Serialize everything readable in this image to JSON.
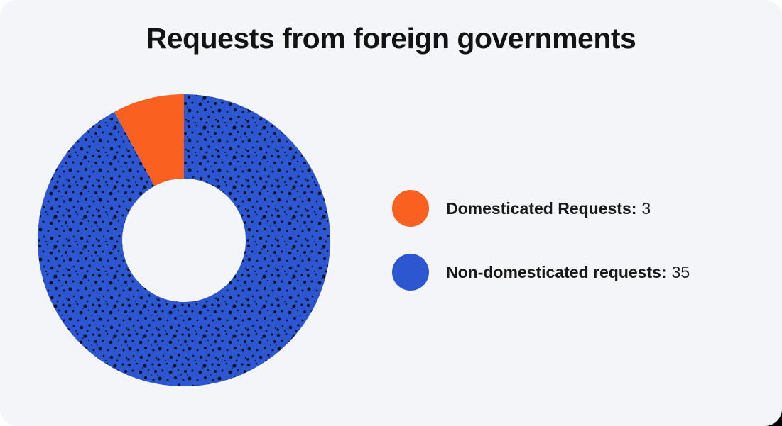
{
  "page": {
    "card_background": "#f4f5f8",
    "outer_background": "#ffffff",
    "corner_artifact_color": "#000000"
  },
  "title": "Requests from foreign governments",
  "colors": {
    "orange": "#fa6120",
    "blue": "#2d57d0",
    "dot": "#0b102b",
    "title_text": "#131313",
    "legend_text": "#191919"
  },
  "legend": {
    "items": [
      {
        "label": "Domesticated Requests:",
        "value": "3",
        "color": "#fa6120",
        "swatch": "orange-circle"
      },
      {
        "label": "Non-domesticated requests:",
        "value": "35",
        "color": "#2d57d0",
        "swatch": "blue-circle"
      }
    ]
  },
  "chart_data": {
    "type": "pie",
    "title": "Requests from foreign governments",
    "categories": [
      "Domesticated Requests",
      "Non-domesticated requests"
    ],
    "values": [
      3,
      35
    ],
    "total": 38,
    "colors": [
      "#fa6120",
      "#2d57d0"
    ],
    "donut": true,
    "inner_radius_ratio": 0.42,
    "start": "top",
    "direction": "clockwise",
    "slice_order_clockwise_from_top": [
      "Non-domesticated requests",
      "Domesticated Requests"
    ],
    "legend_position": "right",
    "texture": "halftone dots on non-domesticated slice",
    "grid": false
  }
}
